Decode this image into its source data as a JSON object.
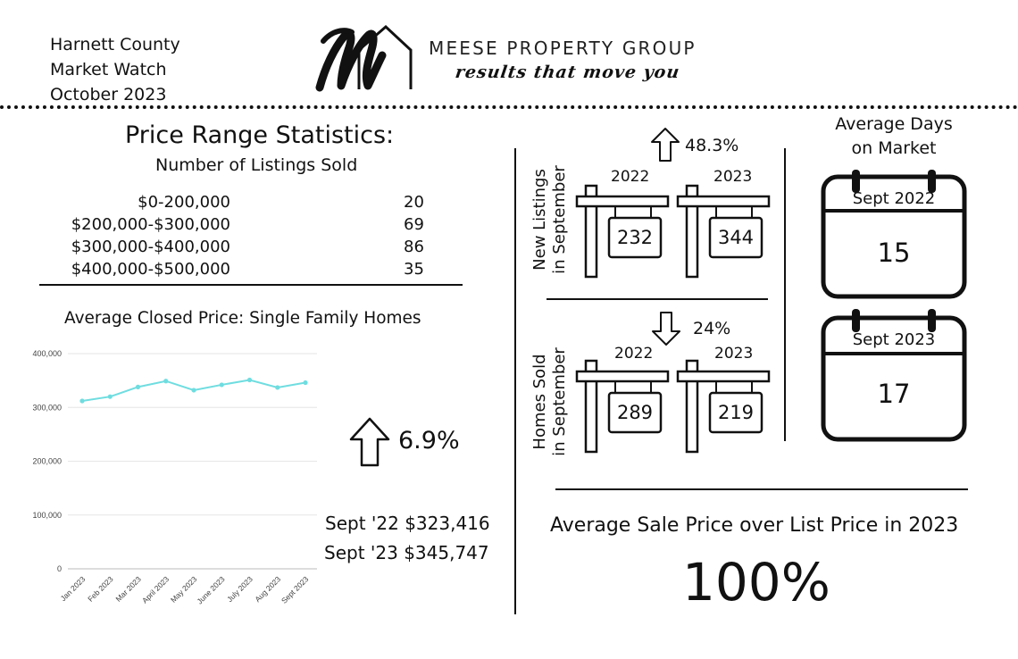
{
  "header": {
    "title_lines": [
      "Harnett County",
      "Market Watch",
      "October 2023"
    ],
    "brand_name": "MEESE PROPERTY GROUP",
    "brand_tagline": "results that move you"
  },
  "price_range": {
    "title": "Price Range Statistics:",
    "subtitle": "Number of Listings Sold",
    "rows": [
      {
        "label": "$0-200,000",
        "count": "20"
      },
      {
        "label": "$200,000-$300,000",
        "count": "69"
      },
      {
        "label": "$300,000-$400,000",
        "count": "86"
      },
      {
        "label": "$400,000-$500,000",
        "count": "35"
      }
    ]
  },
  "closed_price": {
    "title": "Average Closed Price: Single Family Homes",
    "change_pct": "6.9%",
    "sept22": "Sept '22 $323,416",
    "sept23": "Sept '23 $345,747"
  },
  "chart_data": {
    "type": "line",
    "categories": [
      "Jan 2023",
      "Feb 2023",
      "Mar 2023",
      "April 2023",
      "May 2023",
      "June 2023",
      "July 2023",
      "Aug 2023",
      "Sept 2023"
    ],
    "series": [
      {
        "values": [
          312000,
          320000,
          338000,
          349000,
          332000,
          342000,
          351000,
          337000,
          346000
        ]
      }
    ],
    "yticks": [
      0,
      100000,
      200000,
      300000,
      400000
    ],
    "ytick_labels": [
      "0",
      "100,000",
      "200,000",
      "300,000",
      "400,000"
    ],
    "ylim": [
      0,
      400000
    ],
    "grid": true,
    "line_color": "#6fdde0"
  },
  "new_listings": {
    "label_line1": "New Listings",
    "label_line2": "in September",
    "change": "48.3%",
    "direction": "up",
    "year_a": "2022",
    "year_b": "2023",
    "value_a": "232",
    "value_b": "344"
  },
  "homes_sold": {
    "label_line1": "Homes Sold",
    "label_line2": "in September",
    "change": "24%",
    "direction": "down",
    "year_a": "2022",
    "year_b": "2023",
    "value_a": "289",
    "value_b": "219"
  },
  "days_on_market": {
    "title_line1": "Average Days",
    "title_line2": "on Market",
    "cal1_label": "Sept 2022",
    "cal1_value": "15",
    "cal2_label": "Sept 2023",
    "cal2_value": "17"
  },
  "sale_over_list": {
    "title": "Average Sale Price over List Price in 2023",
    "value": "100%"
  }
}
